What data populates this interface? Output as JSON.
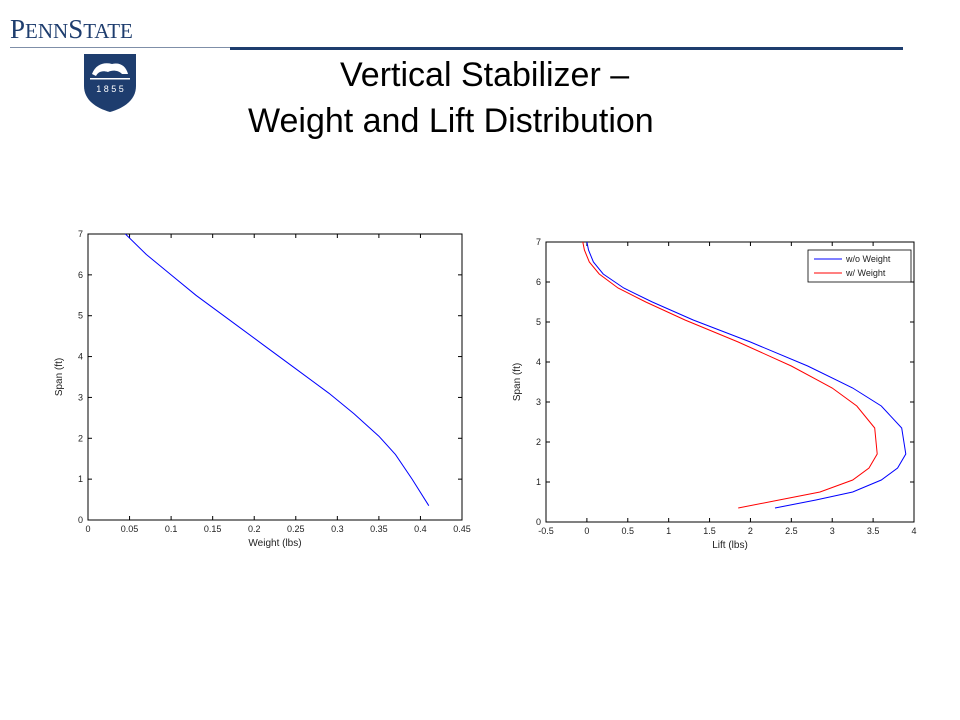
{
  "header": {
    "logo_text_big1": "P",
    "logo_text_small1": "ENN",
    "logo_text_big2": "S",
    "logo_text_small2": "TATE",
    "shield_year": "1 8 5 5",
    "brand_color": "#1e3d6e"
  },
  "title": {
    "line1": "Vertical Stabilizer –",
    "line2": "Weight and Lift Distribution"
  },
  "chart_data": [
    {
      "type": "line",
      "title": "",
      "xlabel": "Weight (lbs)",
      "ylabel": "Span (ft)",
      "xlim": [
        0,
        0.45
      ],
      "ylim": [
        0,
        7
      ],
      "xticks": [
        0,
        0.05,
        0.1,
        0.15,
        0.2,
        0.25,
        0.3,
        0.35,
        0.4,
        0.45
      ],
      "xtick_labels": [
        "0",
        "0.05",
        "0.1",
        "0.15",
        "0.2",
        "0.25",
        "0.3",
        "0.35",
        "0.4",
        "0.45"
      ],
      "yticks": [
        0,
        1,
        2,
        3,
        4,
        5,
        6,
        7
      ],
      "ytick_labels": [
        "0",
        "1",
        "2",
        "3",
        "4",
        "5",
        "6",
        "7"
      ],
      "grid": false,
      "series": [
        {
          "color": "#0000ff",
          "x": [
            0.045,
            0.07,
            0.1,
            0.13,
            0.17,
            0.21,
            0.25,
            0.29,
            0.32,
            0.35,
            0.37,
            0.39,
            0.41
          ],
          "y": [
            7.0,
            6.5,
            6.0,
            5.5,
            4.9,
            4.3,
            3.7,
            3.1,
            2.6,
            2.05,
            1.6,
            1.0,
            0.35
          ]
        }
      ]
    },
    {
      "type": "line",
      "title": "",
      "xlabel": "Lift (lbs)",
      "ylabel": "Span (ft)",
      "xlim": [
        -0.5,
        4
      ],
      "ylim": [
        0,
        7
      ],
      "xticks": [
        -0.5,
        0,
        0.5,
        1,
        1.5,
        2,
        2.5,
        3,
        3.5,
        4
      ],
      "xtick_labels": [
        "-0.5",
        "0",
        "0.5",
        "1",
        "1.5",
        "2",
        "2.5",
        "3",
        "3.5",
        "4"
      ],
      "yticks": [
        0,
        1,
        2,
        3,
        4,
        5,
        6,
        7
      ],
      "ytick_labels": [
        "0",
        "1",
        "2",
        "3",
        "4",
        "5",
        "6",
        "7"
      ],
      "grid": false,
      "legend": "top-right",
      "series": [
        {
          "name": "w/o Weight",
          "color": "#0000ff",
          "x": [
            0.0,
            0.02,
            0.08,
            0.2,
            0.45,
            0.8,
            1.3,
            2.0,
            2.7,
            3.25,
            3.6,
            3.85,
            3.9,
            3.8,
            3.6,
            3.25,
            2.8,
            2.3
          ],
          "y": [
            7.0,
            6.8,
            6.5,
            6.2,
            5.85,
            5.5,
            5.05,
            4.5,
            3.9,
            3.35,
            2.9,
            2.35,
            1.7,
            1.35,
            1.05,
            0.75,
            0.55,
            0.35
          ]
        },
        {
          "name": "w/ Weight",
          "color": "#ff0000",
          "x": [
            -0.05,
            -0.03,
            0.03,
            0.15,
            0.38,
            0.72,
            1.2,
            1.85,
            2.5,
            3.0,
            3.3,
            3.52,
            3.55,
            3.45,
            3.25,
            2.85,
            2.35,
            1.85
          ],
          "y": [
            7.0,
            6.8,
            6.5,
            6.2,
            5.85,
            5.5,
            5.05,
            4.5,
            3.9,
            3.35,
            2.9,
            2.35,
            1.7,
            1.35,
            1.05,
            0.75,
            0.55,
            0.35
          ]
        }
      ]
    }
  ]
}
